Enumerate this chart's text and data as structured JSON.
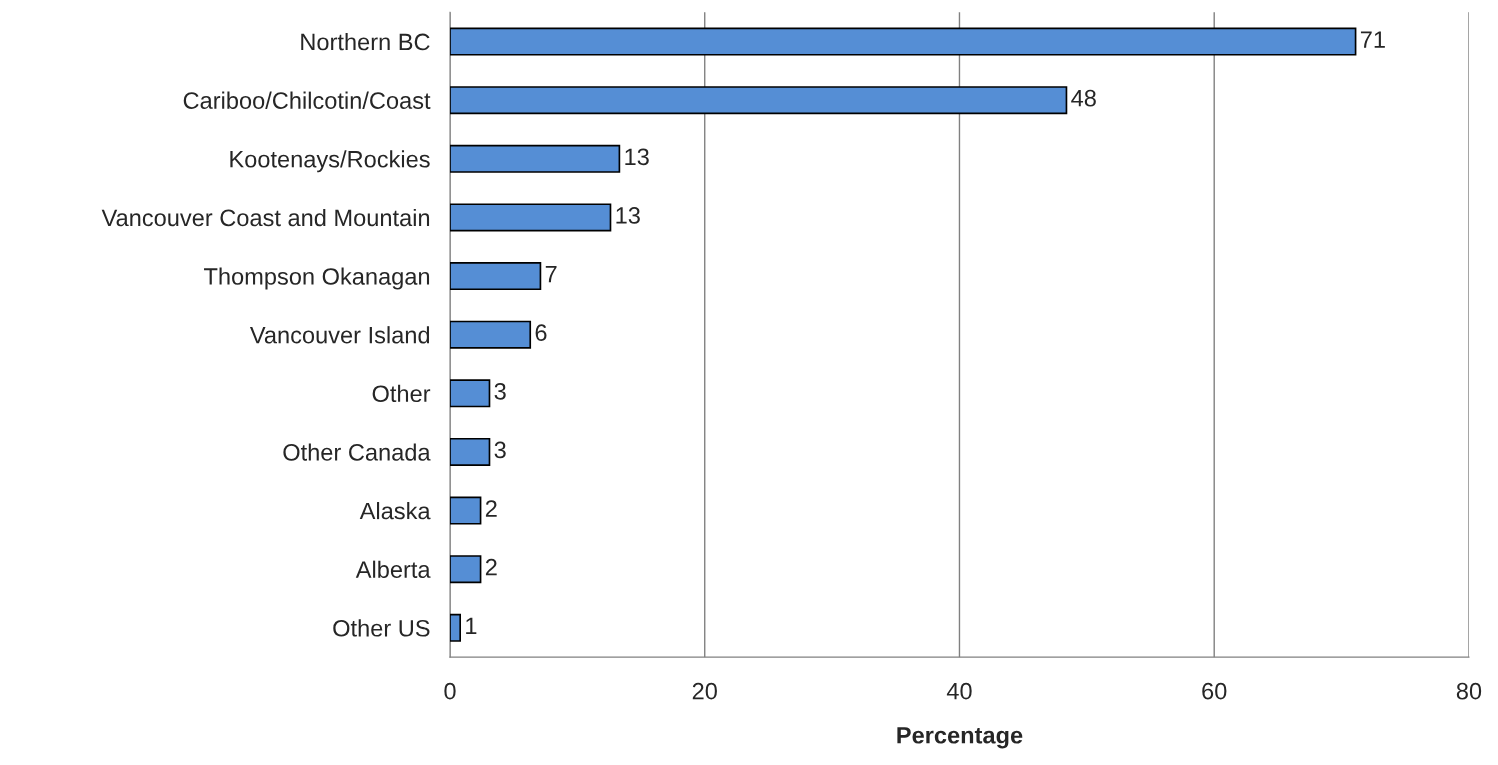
{
  "chart_data": {
    "type": "bar",
    "orientation": "horizontal",
    "xlabel": "Percentage",
    "categories": [
      "Northern BC",
      "Cariboo/Chilcotin/Coast",
      "Kootenays/Rockies",
      "Vancouver Coast and Mountain",
      "Thompson Okanagan",
      "Vancouver Island",
      "Other",
      "Other Canada",
      "Alaska",
      "Alberta",
      "Other US"
    ],
    "values": [
      71.1,
      48.4,
      13.3,
      12.6,
      7.1,
      6.3,
      3.1,
      3.1,
      2.4,
      2.4,
      0.8
    ],
    "value_labels": [
      "71",
      "48",
      "13",
      "13",
      "7",
      "6",
      "3",
      "3",
      "2",
      "2",
      "1"
    ],
    "color": "#558ed5",
    "xlim": [
      0,
      80
    ],
    "xticks": [
      0,
      20,
      40,
      60,
      80
    ],
    "grid": "x"
  }
}
